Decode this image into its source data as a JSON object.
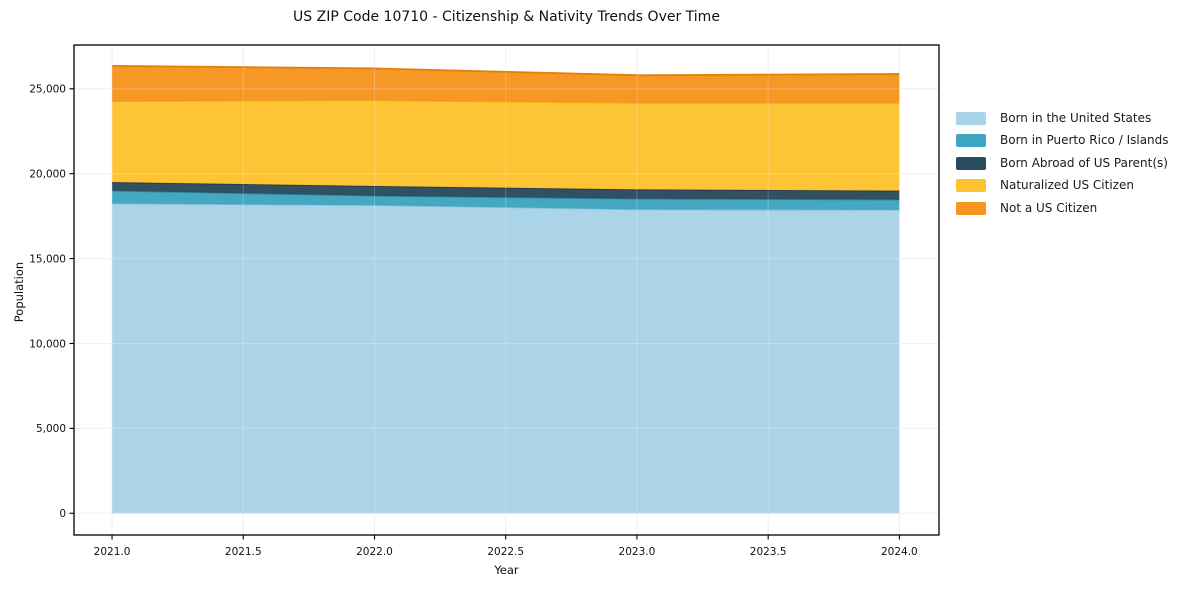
{
  "chart_data": {
    "type": "area",
    "stacked": true,
    "title": "US ZIP Code 10710 - Citizenship & Nativity Trends Over Time",
    "xlabel": "Year",
    "ylabel": "Population",
    "x": [
      2021,
      2022,
      2023,
      2024
    ],
    "series": [
      {
        "name": "Born in the United States",
        "color": "#a9d3e7",
        "edge_color": "#82bcd6",
        "values": [
          18250,
          18150,
          17900,
          17875
        ]
      },
      {
        "name": "Born in Puerto Rico / Islands",
        "color": "#3fa5c1",
        "edge_color": "#2d8ba6",
        "values": [
          750,
          550,
          625,
          600
        ]
      },
      {
        "name": "Born Abroad of US Parent(s)",
        "color": "#2a4a5d",
        "edge_color": "#203a4a",
        "values": [
          500,
          575,
          550,
          525
        ]
      },
      {
        "name": "Naturalized US Citizen",
        "color": "#fdc32f",
        "edge_color": "#f2ae10",
        "values": [
          4775,
          5050,
          5100,
          5175
        ]
      },
      {
        "name": "Not a US Citizen",
        "color": "#f7941e",
        "edge_color": "#e37f06",
        "values": [
          2075,
          1875,
          1625,
          1700
        ]
      }
    ],
    "xlim": [
      2020.855,
      2024.151
    ],
    "ylim": [
      -1280,
      27580
    ],
    "xtick_values": [
      2021.0,
      2021.5,
      2022.0,
      2022.5,
      2023.0,
      2023.5,
      2024.0
    ],
    "xtick_labels": [
      "2021.0",
      "2021.5",
      "2022.0",
      "2022.5",
      "2023.0",
      "2023.5",
      "2024.0"
    ],
    "ytick_values": [
      0,
      5000,
      10000,
      15000,
      20000,
      25000
    ],
    "ytick_labels": [
      "0",
      "5,000",
      "10,000",
      "15,000",
      "20,000",
      "25,000"
    ],
    "grid": true,
    "legend_position": "right-outside",
    "colors": {
      "grid": "#ebebeb",
      "spine": "#000000",
      "background": "#ffffff"
    }
  }
}
